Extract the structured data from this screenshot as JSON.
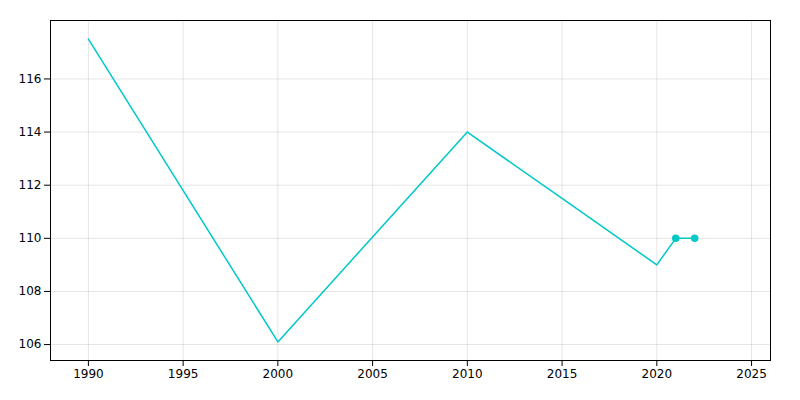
{
  "chart_data": {
    "type": "line",
    "x": [
      1990,
      2000,
      2010,
      2015,
      2020,
      2021,
      2022
    ],
    "values": [
      117.5,
      106.1,
      114.0,
      111.5,
      109.0,
      110.0,
      110.0
    ],
    "color": "#00C8C8",
    "marker": "circle",
    "marker_x": [
      2021,
      2022
    ],
    "xlim": [
      1988,
      2026
    ],
    "ylim": [
      105.4,
      118.2
    ],
    "xticks": [
      1990,
      1995,
      2000,
      2005,
      2010,
      2015,
      2020,
      2025
    ],
    "yticks": [
      106,
      108,
      110,
      112,
      114,
      116
    ],
    "grid": true
  }
}
